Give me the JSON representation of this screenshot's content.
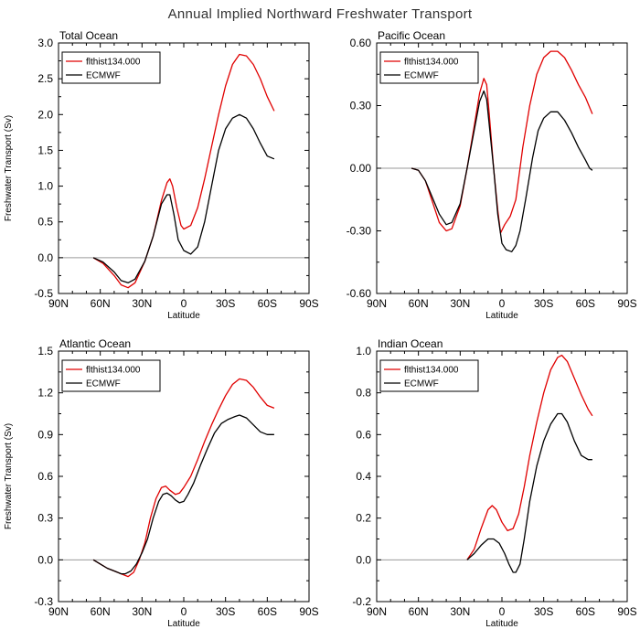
{
  "figure": {
    "title": "Annual Implied Northward Freshwater Transport"
  },
  "chart_data": [
    {
      "type": "line",
      "title": "Total Ocean",
      "xlabel": "Latitude",
      "ylabel": "Freshwater Transport (Sv)",
      "xlim": [
        -90,
        90
      ],
      "ylim": [
        -0.5,
        3.0
      ],
      "x_tick_values": [
        -90,
        -60,
        -30,
        0,
        30,
        60,
        90
      ],
      "x_tick_labels": [
        "90N",
        "60N",
        "30N",
        "0",
        "30S",
        "60S",
        "90S"
      ],
      "y_tick_values": [
        -0.5,
        0.0,
        0.5,
        1.0,
        1.5,
        2.0,
        2.5,
        3.0
      ],
      "y_tick_labels": [
        "-0.5",
        "0.0",
        "0.5",
        "1.0",
        "1.5",
        "2.0",
        "2.5",
        "3.0"
      ],
      "legend": "top-left",
      "series": [
        {
          "name": "flthist134.000",
          "color": "#e00000",
          "points": [
            [
              -65,
              0.0
            ],
            [
              -58,
              -0.08
            ],
            [
              -50,
              -0.25
            ],
            [
              -45,
              -0.38
            ],
            [
              -40,
              -0.42
            ],
            [
              -35,
              -0.35
            ],
            [
              -28,
              -0.05
            ],
            [
              -22,
              0.3
            ],
            [
              -16,
              0.8
            ],
            [
              -12,
              1.05
            ],
            [
              -10,
              1.1
            ],
            [
              -8,
              1.0
            ],
            [
              -5,
              0.7
            ],
            [
              -2,
              0.45
            ],
            [
              0,
              0.4
            ],
            [
              5,
              0.45
            ],
            [
              10,
              0.7
            ],
            [
              15,
              1.1
            ],
            [
              20,
              1.55
            ],
            [
              25,
              2.0
            ],
            [
              30,
              2.4
            ],
            [
              35,
              2.7
            ],
            [
              40,
              2.84
            ],
            [
              45,
              2.82
            ],
            [
              50,
              2.7
            ],
            [
              55,
              2.5
            ],
            [
              60,
              2.25
            ],
            [
              65,
              2.05
            ]
          ]
        },
        {
          "name": "ECMWF",
          "color": "#000000",
          "points": [
            [
              -65,
              0.0
            ],
            [
              -58,
              -0.06
            ],
            [
              -50,
              -0.2
            ],
            [
              -45,
              -0.32
            ],
            [
              -40,
              -0.35
            ],
            [
              -35,
              -0.3
            ],
            [
              -28,
              -0.05
            ],
            [
              -22,
              0.3
            ],
            [
              -16,
              0.75
            ],
            [
              -12,
              0.88
            ],
            [
              -10,
              0.88
            ],
            [
              -7,
              0.6
            ],
            [
              -4,
              0.25
            ],
            [
              0,
              0.1
            ],
            [
              5,
              0.05
            ],
            [
              10,
              0.15
            ],
            [
              15,
              0.5
            ],
            [
              20,
              1.0
            ],
            [
              25,
              1.5
            ],
            [
              30,
              1.8
            ],
            [
              35,
              1.95
            ],
            [
              40,
              2.0
            ],
            [
              45,
              1.95
            ],
            [
              50,
              1.8
            ],
            [
              55,
              1.6
            ],
            [
              60,
              1.42
            ],
            [
              65,
              1.38
            ]
          ]
        }
      ]
    },
    {
      "type": "line",
      "title": "Pacific Ocean",
      "xlabel": "Latitude",
      "ylabel": "",
      "xlim": [
        -90,
        90
      ],
      "ylim": [
        -0.6,
        0.6
      ],
      "x_tick_values": [
        -90,
        -60,
        -30,
        0,
        30,
        60,
        90
      ],
      "x_tick_labels": [
        "90N",
        "60N",
        "30N",
        "0",
        "30S",
        "60S",
        "90S"
      ],
      "y_tick_values": [
        -0.6,
        -0.3,
        0.0,
        0.3,
        0.6
      ],
      "y_tick_labels": [
        "-0.60",
        "-0.30",
        "0.00",
        "0.30",
        "0.60"
      ],
      "legend": "top-left",
      "series": [
        {
          "name": "flthist134.000",
          "color": "#e00000",
          "points": [
            [
              -65,
              0.0
            ],
            [
              -60,
              -0.01
            ],
            [
              -55,
              -0.06
            ],
            [
              -50,
              -0.16
            ],
            [
              -45,
              -0.26
            ],
            [
              -40,
              -0.3
            ],
            [
              -36,
              -0.29
            ],
            [
              -30,
              -0.18
            ],
            [
              -25,
              0.0
            ],
            [
              -20,
              0.2
            ],
            [
              -16,
              0.36
            ],
            [
              -13,
              0.43
            ],
            [
              -11,
              0.4
            ],
            [
              -9,
              0.25
            ],
            [
              -6,
              0.0
            ],
            [
              -3,
              -0.2
            ],
            [
              -1,
              -0.31
            ],
            [
              2,
              -0.27
            ],
            [
              6,
              -0.23
            ],
            [
              10,
              -0.15
            ],
            [
              15,
              0.1
            ],
            [
              20,
              0.3
            ],
            [
              25,
              0.45
            ],
            [
              30,
              0.53
            ],
            [
              35,
              0.56
            ],
            [
              40,
              0.56
            ],
            [
              45,
              0.53
            ],
            [
              50,
              0.47
            ],
            [
              55,
              0.4
            ],
            [
              60,
              0.34
            ],
            [
              65,
              0.26
            ]
          ]
        },
        {
          "name": "ECMWF",
          "color": "#000000",
          "points": [
            [
              -65,
              0.0
            ],
            [
              -60,
              -0.01
            ],
            [
              -55,
              -0.06
            ],
            [
              -50,
              -0.14
            ],
            [
              -45,
              -0.22
            ],
            [
              -40,
              -0.27
            ],
            [
              -36,
              -0.26
            ],
            [
              -30,
              -0.17
            ],
            [
              -25,
              0.0
            ],
            [
              -20,
              0.18
            ],
            [
              -16,
              0.32
            ],
            [
              -13,
              0.37
            ],
            [
              -11,
              0.33
            ],
            [
              -9,
              0.2
            ],
            [
              -6,
              0.0
            ],
            [
              -3,
              -0.22
            ],
            [
              0,
              -0.36
            ],
            [
              3,
              -0.39
            ],
            [
              7,
              -0.4
            ],
            [
              10,
              -0.37
            ],
            [
              13,
              -0.3
            ],
            [
              17,
              -0.15
            ],
            [
              22,
              0.05
            ],
            [
              26,
              0.18
            ],
            [
              30,
              0.24
            ],
            [
              35,
              0.27
            ],
            [
              40,
              0.27
            ],
            [
              45,
              0.23
            ],
            [
              50,
              0.17
            ],
            [
              55,
              0.1
            ],
            [
              60,
              0.04
            ],
            [
              63,
              0.0
            ],
            [
              65,
              -0.01
            ]
          ]
        }
      ]
    },
    {
      "type": "line",
      "title": "Atlantic Ocean",
      "xlabel": "Latitude",
      "ylabel": "Freshwater Transport (Sv)",
      "xlim": [
        -90,
        90
      ],
      "ylim": [
        -0.3,
        1.5
      ],
      "x_tick_values": [
        -90,
        -60,
        -30,
        0,
        30,
        60,
        90
      ],
      "x_tick_labels": [
        "90N",
        "60N",
        "30N",
        "0",
        "30S",
        "60S",
        "90S"
      ],
      "y_tick_values": [
        -0.3,
        0.0,
        0.3,
        0.6,
        0.9,
        1.2,
        1.5
      ],
      "y_tick_labels": [
        "-0.3",
        "0.0",
        "0.3",
        "0.6",
        "0.9",
        "1.2",
        "1.5"
      ],
      "legend": "top-left",
      "series": [
        {
          "name": "flthist134.000",
          "color": "#e00000",
          "points": [
            [
              -65,
              0.0
            ],
            [
              -60,
              -0.03
            ],
            [
              -55,
              -0.06
            ],
            [
              -50,
              -0.08
            ],
            [
              -45,
              -0.1
            ],
            [
              -40,
              -0.12
            ],
            [
              -36,
              -0.09
            ],
            [
              -32,
              0.0
            ],
            [
              -28,
              0.12
            ],
            [
              -24,
              0.3
            ],
            [
              -20,
              0.44
            ],
            [
              -16,
              0.52
            ],
            [
              -13,
              0.53
            ],
            [
              -10,
              0.5
            ],
            [
              -6,
              0.47
            ],
            [
              -3,
              0.48
            ],
            [
              0,
              0.52
            ],
            [
              5,
              0.6
            ],
            [
              10,
              0.72
            ],
            [
              15,
              0.85
            ],
            [
              20,
              0.97
            ],
            [
              25,
              1.08
            ],
            [
              30,
              1.18
            ],
            [
              35,
              1.26
            ],
            [
              40,
              1.3
            ],
            [
              45,
              1.29
            ],
            [
              50,
              1.24
            ],
            [
              55,
              1.17
            ],
            [
              60,
              1.11
            ],
            [
              65,
              1.09
            ]
          ]
        },
        {
          "name": "ECMWF",
          "color": "#000000",
          "points": [
            [
              -65,
              0.0
            ],
            [
              -60,
              -0.03
            ],
            [
              -55,
              -0.06
            ],
            [
              -50,
              -0.08
            ],
            [
              -45,
              -0.1
            ],
            [
              -42,
              -0.1
            ],
            [
              -38,
              -0.08
            ],
            [
              -34,
              -0.03
            ],
            [
              -30,
              0.05
            ],
            [
              -26,
              0.15
            ],
            [
              -22,
              0.3
            ],
            [
              -18,
              0.42
            ],
            [
              -15,
              0.47
            ],
            [
              -12,
              0.48
            ],
            [
              -9,
              0.46
            ],
            [
              -6,
              0.43
            ],
            [
              -3,
              0.41
            ],
            [
              0,
              0.42
            ],
            [
              3,
              0.47
            ],
            [
              7,
              0.55
            ],
            [
              12,
              0.68
            ],
            [
              17,
              0.8
            ],
            [
              22,
              0.91
            ],
            [
              27,
              0.98
            ],
            [
              32,
              1.01
            ],
            [
              37,
              1.03
            ],
            [
              40,
              1.04
            ],
            [
              45,
              1.02
            ],
            [
              50,
              0.97
            ],
            [
              55,
              0.92
            ],
            [
              60,
              0.9
            ],
            [
              65,
              0.9
            ]
          ]
        }
      ]
    },
    {
      "type": "line",
      "title": "Indian Ocean",
      "xlabel": "Latitude",
      "ylabel": "",
      "xlim": [
        -90,
        90
      ],
      "ylim": [
        -0.2,
        1.0
      ],
      "x_tick_values": [
        -90,
        -60,
        -30,
        0,
        30,
        60,
        90
      ],
      "x_tick_labels": [
        "90N",
        "60N",
        "30N",
        "0",
        "30S",
        "60S",
        "90S"
      ],
      "y_tick_values": [
        -0.2,
        0.0,
        0.2,
        0.4,
        0.6,
        0.8,
        1.0
      ],
      "y_tick_labels": [
        "-0.2",
        "0.0",
        "0.2",
        "0.4",
        "0.6",
        "0.8",
        "1.0"
      ],
      "legend": "top-left",
      "series": [
        {
          "name": "flthist134.000",
          "color": "#e00000",
          "points": [
            [
              -25,
              0.0
            ],
            [
              -20,
              0.05
            ],
            [
              -15,
              0.15
            ],
            [
              -10,
              0.24
            ],
            [
              -7,
              0.26
            ],
            [
              -4,
              0.24
            ],
            [
              0,
              0.18
            ],
            [
              4,
              0.14
            ],
            [
              8,
              0.15
            ],
            [
              12,
              0.22
            ],
            [
              16,
              0.35
            ],
            [
              20,
              0.5
            ],
            [
              25,
              0.66
            ],
            [
              30,
              0.8
            ],
            [
              35,
              0.91
            ],
            [
              40,
              0.97
            ],
            [
              43,
              0.98
            ],
            [
              47,
              0.95
            ],
            [
              52,
              0.87
            ],
            [
              57,
              0.79
            ],
            [
              62,
              0.72
            ],
            [
              65,
              0.69
            ]
          ]
        },
        {
          "name": "ECMWF",
          "color": "#000000",
          "points": [
            [
              -25,
              0.0
            ],
            [
              -20,
              0.03
            ],
            [
              -15,
              0.07
            ],
            [
              -10,
              0.1
            ],
            [
              -6,
              0.1
            ],
            [
              -2,
              0.08
            ],
            [
              2,
              0.03
            ],
            [
              5,
              -0.02
            ],
            [
              8,
              -0.06
            ],
            [
              10,
              -0.06
            ],
            [
              13,
              -0.02
            ],
            [
              16,
              0.1
            ],
            [
              20,
              0.28
            ],
            [
              25,
              0.45
            ],
            [
              30,
              0.57
            ],
            [
              35,
              0.65
            ],
            [
              40,
              0.7
            ],
            [
              43,
              0.7
            ],
            [
              47,
              0.66
            ],
            [
              52,
              0.57
            ],
            [
              57,
              0.5
            ],
            [
              62,
              0.48
            ],
            [
              65,
              0.48
            ]
          ]
        }
      ]
    }
  ]
}
